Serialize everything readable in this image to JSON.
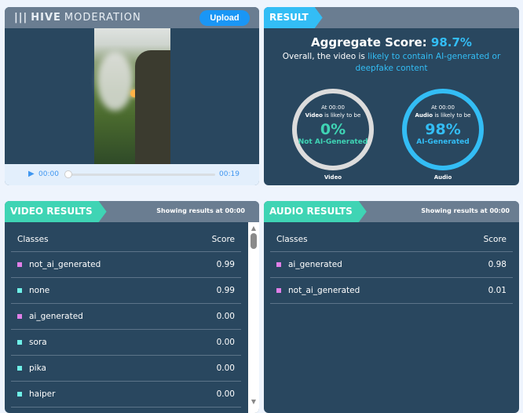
{
  "header": {
    "logo_bold": "HIVE",
    "logo_light": "MODERATION",
    "upload_label": "Upload"
  },
  "player": {
    "current_time": "00:00",
    "duration": "00:19",
    "progress": 0
  },
  "result": {
    "tab": "RESULT",
    "aggregate_label": "Aggregate Score:",
    "aggregate_value": "98.7%",
    "summary_prefix": "Overall, the video is",
    "summary_highlight": "likely to contain AI-generated or deepfake content",
    "video": {
      "at": "At 00:00",
      "subject": "Video",
      "likely": "is likely to be",
      "percent": "0%",
      "verdict": "Not AI-Generated",
      "label": "Video",
      "value": 0,
      "color": "#3fd4b4"
    },
    "audio": {
      "at": "At 00:00",
      "subject": "Audio",
      "likely": "is likely to be",
      "percent": "98%",
      "verdict": "AI-Generated",
      "label": "Audio",
      "value": 98,
      "color": "#33bdf5"
    }
  },
  "video_results": {
    "tab": "VIDEO RESULTS",
    "showing": "Showing results at 00:00",
    "col_classes": "Classes",
    "col_score": "Score",
    "rows": [
      {
        "name": "not_ai_generated",
        "score": "0.99",
        "color": "#e07fe8"
      },
      {
        "name": "none",
        "score": "0.99",
        "color": "#6ff0e8"
      },
      {
        "name": "ai_generated",
        "score": "0.00",
        "color": "#e07fe8"
      },
      {
        "name": "sora",
        "score": "0.00",
        "color": "#6ff0e8"
      },
      {
        "name": "pika",
        "score": "0.00",
        "color": "#6ff0e8"
      },
      {
        "name": "haiper",
        "score": "0.00",
        "color": "#6ff0e8"
      }
    ]
  },
  "audio_results": {
    "tab": "AUDIO RESULTS",
    "showing": "Showing results at 00:00",
    "col_classes": "Classes",
    "col_score": "Score",
    "rows": [
      {
        "name": "ai_generated",
        "score": "0.98",
        "color": "#e07fe8"
      },
      {
        "name": "not_ai_generated",
        "score": "0.01",
        "color": "#e07fe8"
      }
    ]
  },
  "colors": {
    "video_tab": "#3fd4b4",
    "result_tab": "#33bdf5",
    "panel": "#29475f",
    "header": "#6a7d91"
  }
}
